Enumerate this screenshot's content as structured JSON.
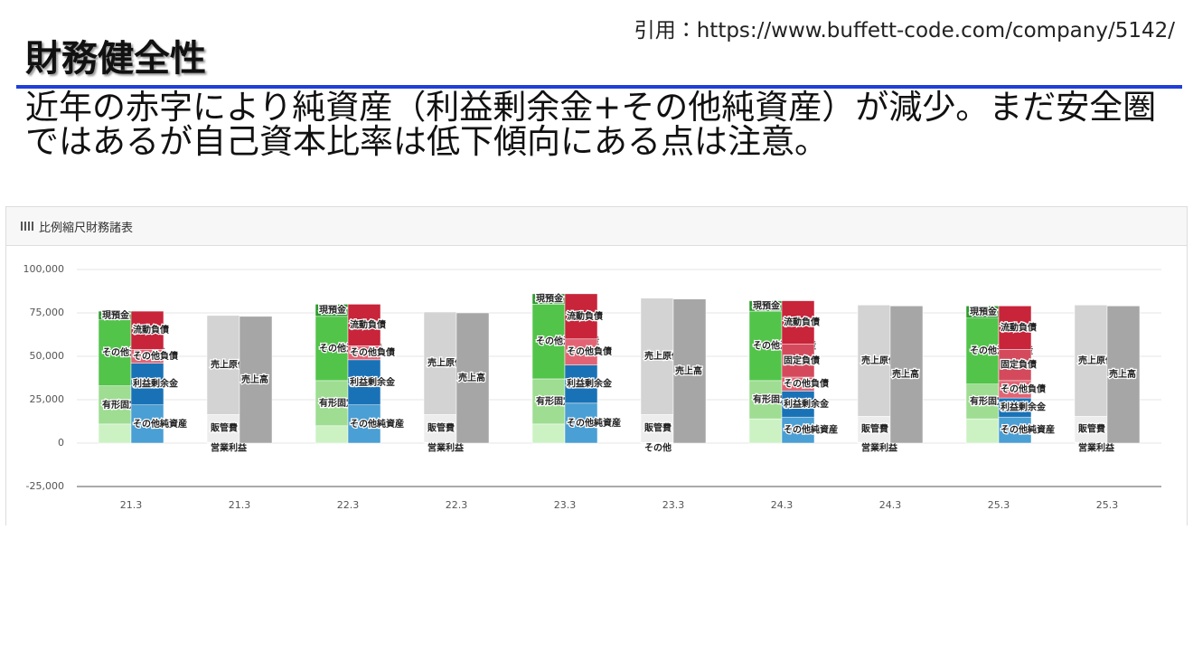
{
  "header": {
    "citation": "引用：https://www.buffett-code.com/company/5142/",
    "title": "財務健全性",
    "body": "近年の赤字により純資産（利益剰余金+その他純資産）が減少。まだ安全圏ではあるが自己資本比率は低下傾向にある点は注意。"
  },
  "chart_data": {
    "type": "stacked_bar",
    "title": "比例縮尺財務諸表",
    "categories": [
      "21.3",
      "21.3",
      "22.3",
      "22.3",
      "23.3",
      "23.3",
      "24.3",
      "24.3",
      "25.3",
      "25.3"
    ],
    "ylim": [
      -25000,
      100000
    ],
    "yticks": [
      {
        "value": -25000,
        "label": "-25,000"
      },
      0,
      {
        "value": 25000,
        "label": "25,000"
      },
      {
        "value": 50000,
        "label": "50,000"
      },
      {
        "value": 75000,
        "label": "75,000"
      },
      {
        "value": 100000,
        "label": "100,000"
      }
    ],
    "grid": true,
    "series": [
      {
        "stack": "left",
        "color": "#ccf2c4",
        "values": [
          11000,
          null,
          10000,
          null,
          11000,
          null,
          14000,
          null,
          14000,
          null
        ]
      },
      {
        "name": "有形固定資産",
        "stack": "left",
        "color": "#9edd92",
        "values": [
          22000,
          null,
          26000,
          null,
          26000,
          null,
          22000,
          null,
          20000,
          null
        ]
      },
      {
        "name": "その他流動資産",
        "stack": "left",
        "color": "#52c44a",
        "values": [
          38000,
          null,
          37000,
          null,
          43000,
          null,
          40000,
          null,
          38000,
          null
        ]
      },
      {
        "name": "現預金",
        "stack": "left",
        "color": "#2e9a2e",
        "values": [
          5000,
          null,
          7000,
          null,
          6000,
          null,
          6000,
          null,
          7000,
          null
        ]
      },
      {
        "name": "その他純資産",
        "stack": "right",
        "color": "#4a9fd4",
        "values": [
          22000,
          null,
          22000,
          null,
          23000,
          null,
          15000,
          null,
          15000,
          null
        ]
      },
      {
        "name": "利益剰余金",
        "stack": "right",
        "color": "#1a72b6",
        "values": [
          24000,
          null,
          26000,
          null,
          22000,
          null,
          15000,
          null,
          11000,
          null
        ]
      },
      {
        "name": "その他負債",
        "stack": "right",
        "color": "#e26474",
        "values": [
          8000,
          null,
          8000,
          null,
          15000,
          null,
          8000,
          null,
          10000,
          null
        ]
      },
      {
        "name": "固定負債",
        "stack": "right",
        "color": "#d44a5c",
        "values": [
          null,
          null,
          null,
          null,
          null,
          null,
          19000,
          null,
          18000,
          null
        ]
      },
      {
        "name": "流動負債",
        "stack": "right",
        "color": "#c8243a",
        "values": [
          22000,
          null,
          24000,
          null,
          26000,
          null,
          25000,
          null,
          25000,
          null
        ]
      },
      {
        "name": "営業利益",
        "stack": "left",
        "color": "#ffffff",
        "values": [
          null,
          500,
          null,
          500,
          null,
          null,
          null,
          500,
          null,
          500
        ]
      },
      {
        "name": "その他",
        "stack": "left",
        "color": "#ffffff",
        "values": [
          null,
          null,
          null,
          null,
          null,
          500,
          null,
          null,
          null,
          null
        ]
      },
      {
        "name": "販管費",
        "stack": "left",
        "color": "#ededed",
        "values": [
          null,
          16000,
          null,
          16000,
          null,
          16000,
          null,
          15000,
          null,
          15000
        ]
      },
      {
        "name": "売上原価",
        "stack": "left",
        "color": "#d3d3d3",
        "values": [
          null,
          57000,
          null,
          59000,
          null,
          67000,
          null,
          64000,
          null,
          64000
        ]
      },
      {
        "name": "売上高",
        "stack": "right",
        "color": "#a6a6a6",
        "values": [
          null,
          73000,
          null,
          75000,
          null,
          83000,
          null,
          79000,
          null,
          79000
        ]
      }
    ]
  }
}
